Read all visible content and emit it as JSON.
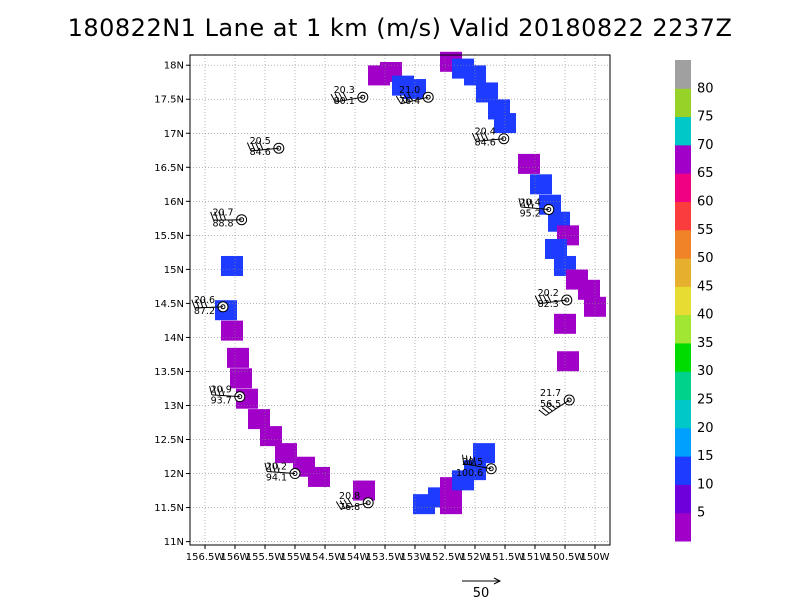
{
  "title": "180822N1 Lane at 1 km (m/s) Valid 20180822 2237Z",
  "chart_data": {
    "type": "scatter",
    "title": "180822N1 Lane at 1 km (m/s) Valid 20180822 2237Z",
    "xlim": [
      -156.75,
      -149.75
    ],
    "ylim": [
      10.95,
      18.15
    ],
    "x_tick_labels": [
      "156.5W",
      "156W",
      "155.5W",
      "155W",
      "154.5W",
      "154W",
      "153.5W",
      "153W",
      "152.5W",
      "152W",
      "151.5W",
      "151W",
      "150.5W",
      "150W"
    ],
    "y_tick_labels": [
      "11N",
      "11.5N",
      "12N",
      "12.5N",
      "13N",
      "13.5N",
      "14N",
      "14.5N",
      "15N",
      "15.5N",
      "16N",
      "16.5N",
      "17N",
      "17.5N",
      "18N"
    ],
    "grid": true,
    "colorbar": {
      "labels": [
        "5",
        "10",
        "15",
        "20",
        "25",
        "30",
        "35",
        "40",
        "45",
        "50",
        "55",
        "60",
        "65",
        "70",
        "75",
        "80"
      ],
      "colors": [
        "#a000c8",
        "#6e00dc",
        "#1e3cff",
        "#00a0ff",
        "#00c8c8",
        "#00d28c",
        "#00dc00",
        "#a0e632",
        "#e6dc32",
        "#e6af2d",
        "#f08228",
        "#fa3c3c",
        "#f00082",
        "#a000c8",
        "#00c8c8",
        "#96d228",
        "#a0a0a0"
      ]
    },
    "reference_vector_label": "50",
    "dropsondes": [
      {
        "speed": "20.3",
        "direction": "80.1",
        "lon": -153.87,
        "lat": 17.53
      },
      {
        "speed": "21.0",
        "direction": "76.4",
        "lon": -152.78,
        "lat": 17.53
      },
      {
        "speed": "20.4",
        "direction": "84.6",
        "lon": -151.52,
        "lat": 16.92
      },
      {
        "speed": "20.5",
        "direction": "84.6",
        "lon": -155.27,
        "lat": 16.78
      },
      {
        "speed": "20.4",
        "direction": "95.2",
        "lon": -150.77,
        "lat": 15.88
      },
      {
        "speed": "20.7",
        "direction": "88.8",
        "lon": -155.89,
        "lat": 15.73
      },
      {
        "speed": "20.6",
        "direction": "87.2",
        "lon": -156.2,
        "lat": 14.45
      },
      {
        "speed": "20.2",
        "direction": "82.3",
        "lon": -150.47,
        "lat": 14.55
      },
      {
        "speed": "20.9",
        "direction": "93.7",
        "lon": -155.92,
        "lat": 13.13
      },
      {
        "speed": "21.7",
        "direction": "56.5",
        "lon": -150.43,
        "lat": 13.08
      },
      {
        "speed": "20.5",
        "direction": "100.6",
        "lon": -151.73,
        "lat": 12.07
      },
      {
        "speed": "20.2",
        "direction": "94.1",
        "lon": -155.0,
        "lat": 12.0
      },
      {
        "speed": "20.8",
        "direction": "76.8",
        "lon": -153.78,
        "lat": 11.57
      }
    ],
    "wind_cells": [
      {
        "lon": -153.6,
        "lat": 17.85,
        "speed_class": "purple"
      },
      {
        "lon": -153.4,
        "lat": 17.9,
        "speed_class": "purple"
      },
      {
        "lon": -153.2,
        "lat": 17.7,
        "speed_class": "blue"
      },
      {
        "lon": -153.0,
        "lat": 17.65,
        "speed_class": "blue"
      },
      {
        "lon": -152.4,
        "lat": 18.05,
        "speed_class": "purple"
      },
      {
        "lon": -152.2,
        "lat": 17.95,
        "speed_class": "blue"
      },
      {
        "lon": -152.0,
        "lat": 17.85,
        "speed_class": "blue"
      },
      {
        "lon": -151.8,
        "lat": 17.6,
        "speed_class": "blue"
      },
      {
        "lon": -151.6,
        "lat": 17.35,
        "speed_class": "blue"
      },
      {
        "lon": -151.5,
        "lat": 17.15,
        "speed_class": "blue"
      },
      {
        "lon": -151.1,
        "lat": 16.55,
        "speed_class": "purple"
      },
      {
        "lon": -150.9,
        "lat": 16.25,
        "speed_class": "blue"
      },
      {
        "lon": -150.75,
        "lat": 15.95,
        "speed_class": "blue"
      },
      {
        "lon": -150.6,
        "lat": 15.7,
        "speed_class": "blue"
      },
      {
        "lon": -150.45,
        "lat": 15.5,
        "speed_class": "purple"
      },
      {
        "lon": -150.65,
        "lat": 15.3,
        "speed_class": "blue"
      },
      {
        "lon": -150.5,
        "lat": 15.05,
        "speed_class": "blue"
      },
      {
        "lon": -150.3,
        "lat": 14.85,
        "speed_class": "purple"
      },
      {
        "lon": -150.1,
        "lat": 14.7,
        "speed_class": "purple"
      },
      {
        "lon": -150.0,
        "lat": 14.45,
        "speed_class": "purple"
      },
      {
        "lon": -150.5,
        "lat": 14.2,
        "speed_class": "purple"
      },
      {
        "lon": -150.45,
        "lat": 13.65,
        "speed_class": "purple"
      },
      {
        "lon": -156.05,
        "lat": 15.05,
        "speed_class": "blue"
      },
      {
        "lon": -156.15,
        "lat": 14.4,
        "speed_class": "blue"
      },
      {
        "lon": -156.05,
        "lat": 14.1,
        "speed_class": "purple"
      },
      {
        "lon": -155.95,
        "lat": 13.7,
        "speed_class": "purple"
      },
      {
        "lon": -155.9,
        "lat": 13.4,
        "speed_class": "purple"
      },
      {
        "lon": -155.8,
        "lat": 13.1,
        "speed_class": "purple"
      },
      {
        "lon": -155.6,
        "lat": 12.8,
        "speed_class": "purple"
      },
      {
        "lon": -155.4,
        "lat": 12.55,
        "speed_class": "purple"
      },
      {
        "lon": -155.15,
        "lat": 12.3,
        "speed_class": "purple"
      },
      {
        "lon": -154.85,
        "lat": 12.1,
        "speed_class": "purple"
      },
      {
        "lon": -154.6,
        "lat": 11.95,
        "speed_class": "purple"
      },
      {
        "lon": -153.85,
        "lat": 11.75,
        "speed_class": "purple"
      },
      {
        "lon": -152.85,
        "lat": 11.55,
        "speed_class": "blue"
      },
      {
        "lon": -152.6,
        "lat": 11.65,
        "speed_class": "blue"
      },
      {
        "lon": -152.4,
        "lat": 11.8,
        "speed_class": "purple"
      },
      {
        "lon": -152.2,
        "lat": 11.9,
        "speed_class": "blue"
      },
      {
        "lon": -152.0,
        "lat": 12.05,
        "speed_class": "blue"
      },
      {
        "lon": -151.85,
        "lat": 12.3,
        "speed_class": "blue"
      },
      {
        "lon": -152.4,
        "lat": 11.55,
        "speed_class": "purple"
      }
    ]
  }
}
